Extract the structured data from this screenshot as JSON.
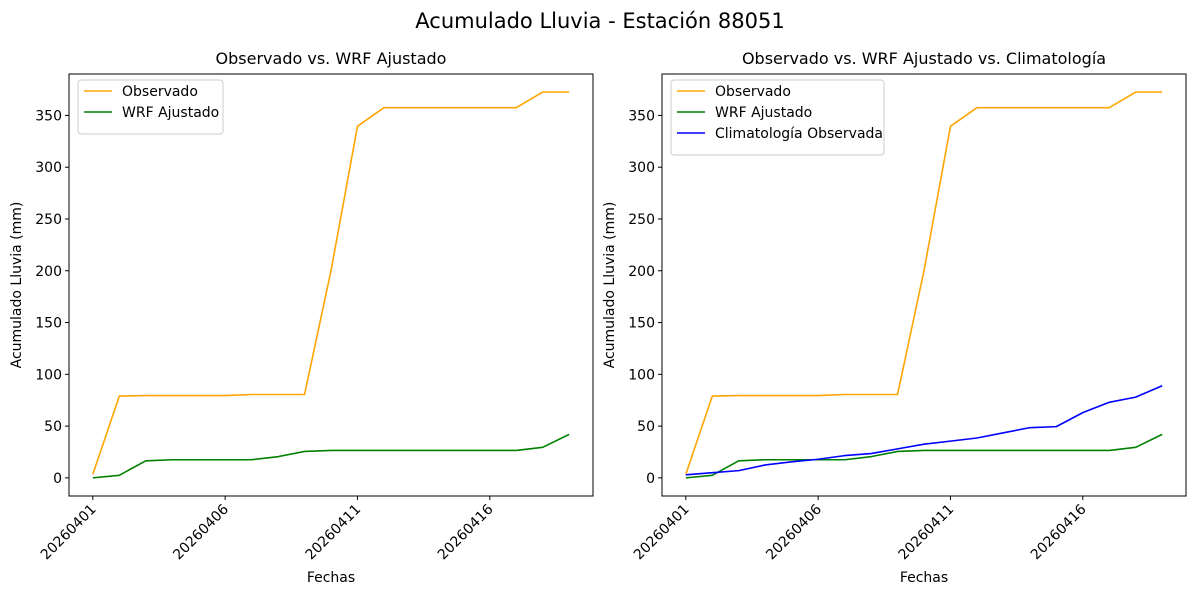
{
  "figure": {
    "title": "Acumulado Lluvia - Estación 88051"
  },
  "chart_data": [
    {
      "type": "line",
      "title": "Observado vs. WRF Ajustado",
      "xlabel": "Fechas",
      "ylabel": "Acumulado Lluvia (mm)",
      "x": [
        "20260401",
        "20260402",
        "20260403",
        "20260404",
        "20260405",
        "20260406",
        "20260407",
        "20260408",
        "20260409",
        "20260410",
        "20260411",
        "20260412",
        "20260413",
        "20260414",
        "20260415",
        "20260416",
        "20260417",
        "20260418",
        "20260419"
      ],
      "xticks": [
        "20260401",
        "20260406",
        "20260411",
        "20260416"
      ],
      "ylim": [
        -17.5,
        390
      ],
      "yticks": [
        0,
        50,
        100,
        150,
        200,
        250,
        300,
        350
      ],
      "legend_position": "upper-left",
      "grid": false,
      "series": [
        {
          "name": "Observado",
          "color": "#ffa500",
          "values": [
            3.5,
            79,
            79.5,
            79.5,
            79.5,
            79.5,
            80.5,
            80.5,
            80.5,
            200,
            339.5,
            357.5,
            357.5,
            357.5,
            357.5,
            357.5,
            357.5,
            372.5,
            372.5
          ]
        },
        {
          "name": "WRF Ajustado",
          "color": "#008000",
          "values": [
            0,
            2.5,
            16.5,
            17.5,
            17.5,
            17.5,
            17.5,
            20.5,
            25.5,
            26.5,
            26.5,
            26.5,
            26.5,
            26.5,
            26.5,
            26.5,
            26.5,
            29.5,
            42
          ]
        }
      ]
    },
    {
      "type": "line",
      "title": "Observado vs. WRF Ajustado vs. Climatología",
      "xlabel": "Fechas",
      "ylabel": "Acumulado Lluvia (mm)",
      "x": [
        "20260401",
        "20260402",
        "20260403",
        "20260404",
        "20260405",
        "20260406",
        "20260407",
        "20260408",
        "20260409",
        "20260410",
        "20260411",
        "20260412",
        "20260413",
        "20260414",
        "20260415",
        "20260416",
        "20260417",
        "20260418",
        "20260419"
      ],
      "xticks": [
        "20260401",
        "20260406",
        "20260411",
        "20260416"
      ],
      "ylim": [
        -17.5,
        390
      ],
      "yticks": [
        0,
        50,
        100,
        150,
        200,
        250,
        300,
        350
      ],
      "legend_position": "upper-left",
      "grid": false,
      "series": [
        {
          "name": "Observado",
          "color": "#ffa500",
          "values": [
            3.5,
            79,
            79.5,
            79.5,
            79.5,
            79.5,
            80.5,
            80.5,
            80.5,
            200,
            339.5,
            357.5,
            357.5,
            357.5,
            357.5,
            357.5,
            357.5,
            372.5,
            372.5
          ]
        },
        {
          "name": "WRF Ajustado",
          "color": "#008000",
          "values": [
            0,
            2.5,
            16.5,
            17.5,
            17.5,
            17.5,
            17.5,
            20.5,
            25.5,
            26.5,
            26.5,
            26.5,
            26.5,
            26.5,
            26.5,
            26.5,
            26.5,
            29.5,
            42
          ]
        },
        {
          "name": "Climatología Observada",
          "color": "#0000ff",
          "values": [
            3,
            5,
            7,
            12.5,
            15.5,
            18,
            21.5,
            23.5,
            28,
            32.5,
            35.5,
            38.5,
            43.5,
            48.5,
            49.5,
            63,
            73,
            78,
            89
          ]
        }
      ]
    }
  ]
}
